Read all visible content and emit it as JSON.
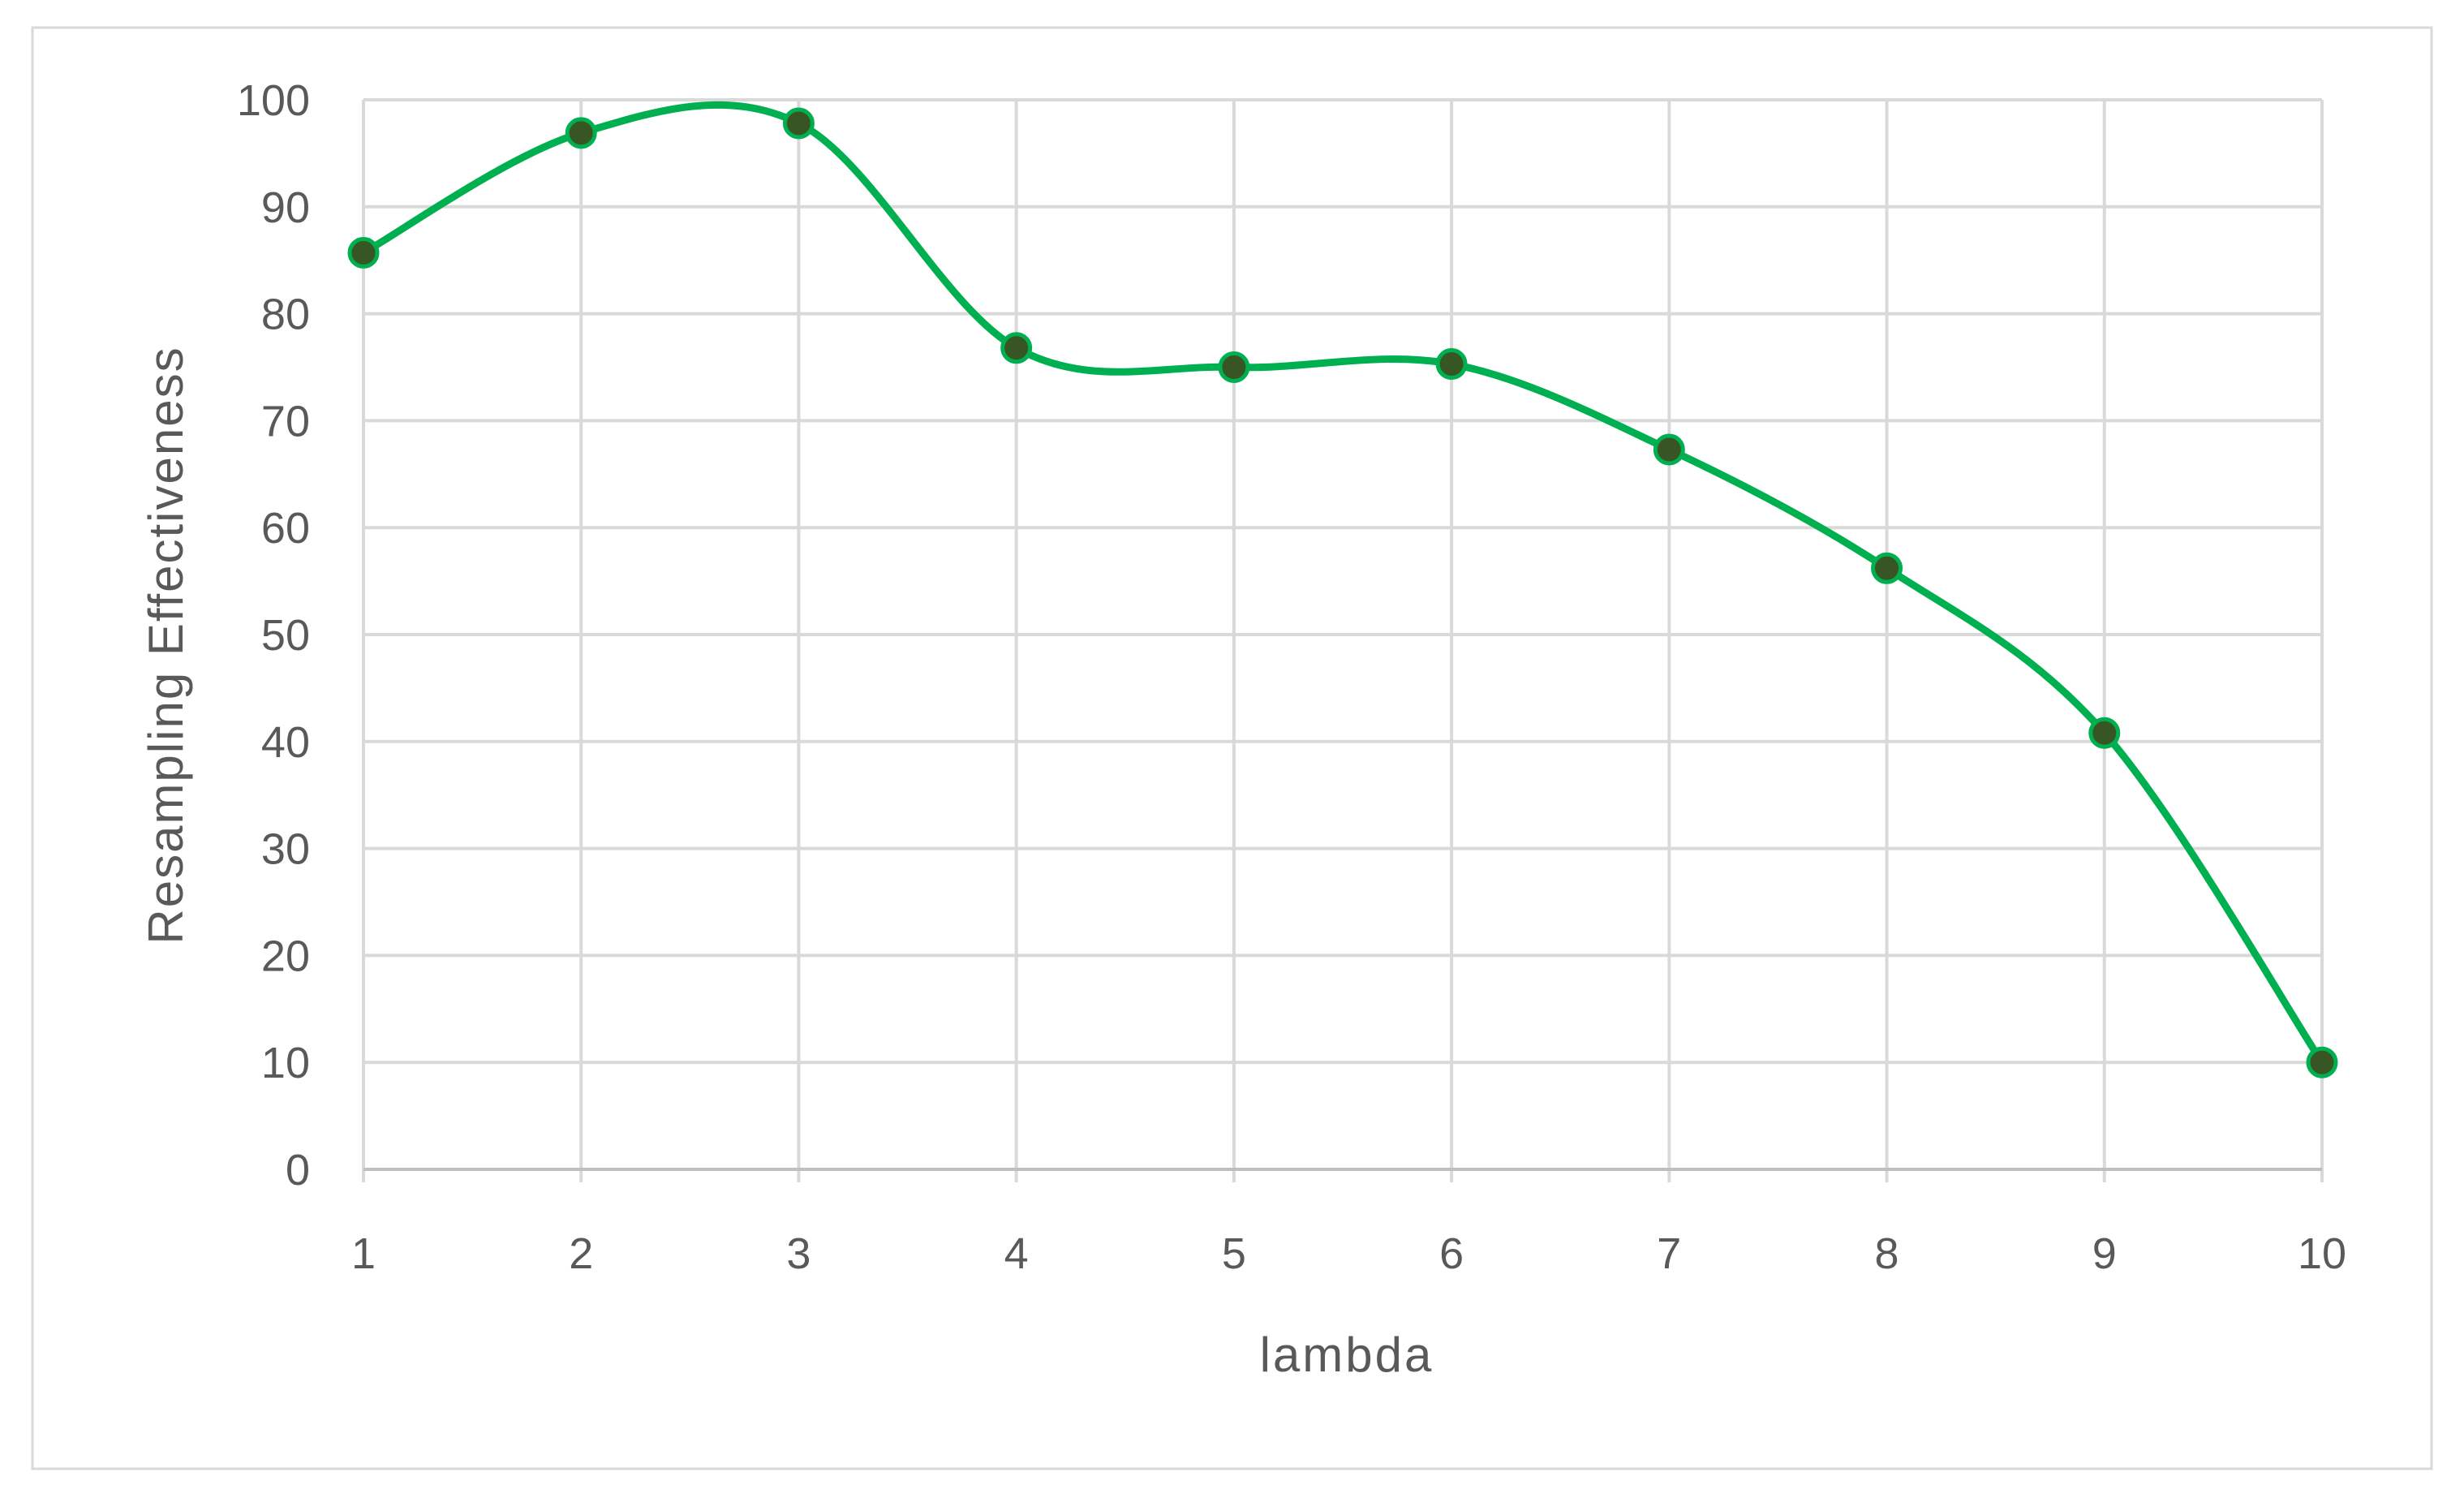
{
  "chart_data": {
    "type": "line",
    "smooth": true,
    "title": "",
    "xlabel": "lambda",
    "ylabel": "Resampling Effectiveness",
    "x": [
      1,
      2,
      3,
      4,
      5,
      6,
      7,
      8,
      9,
      10
    ],
    "x_tick_labels": [
      "1",
      "2",
      "3",
      "4",
      "5",
      "6",
      "7",
      "8",
      "9",
      "10"
    ],
    "xlim": [
      1,
      10
    ],
    "ylim": [
      0,
      100
    ],
    "y_ticks": [
      0,
      10,
      20,
      30,
      40,
      50,
      60,
      70,
      80,
      90,
      100
    ],
    "y_tick_labels": [
      "0",
      "10",
      "20",
      "30",
      "40",
      "50",
      "60",
      "70",
      "80",
      "90",
      "100"
    ],
    "grid": true,
    "legend": "none",
    "series": [
      {
        "values": [
          85.7,
          96.9,
          97.8,
          76.8,
          75.0,
          75.3,
          67.3,
          56.2,
          40.8,
          10.0
        ],
        "line_color": "#00b050",
        "marker_color": "#375623",
        "marker": "circle"
      }
    ],
    "colors": {
      "grid": "#d9d9d9",
      "axis": "#bfbfbf",
      "text": "#595959",
      "border": "#d9d9d9"
    }
  }
}
